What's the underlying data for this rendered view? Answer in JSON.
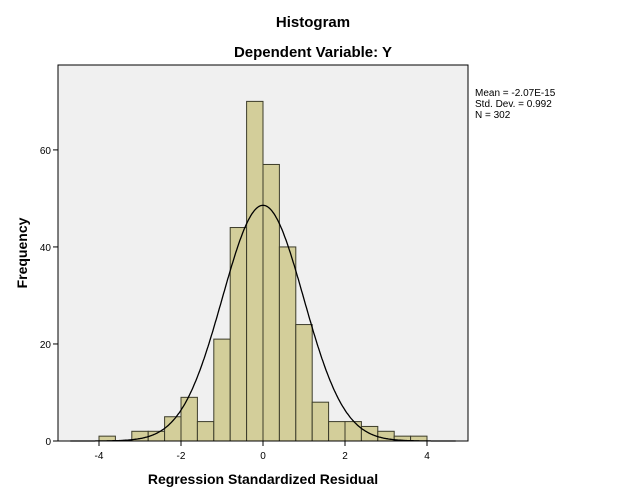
{
  "chart_data": {
    "type": "bar",
    "title": "Histogram",
    "subtitle": "Dependent Variable: Y",
    "xlabel": "Regression Standardized Residual",
    "ylabel": "Frequency",
    "xlim": [
      -5,
      5
    ],
    "ylim": [
      0,
      77.5
    ],
    "xticks": [
      -4,
      -2,
      0,
      2,
      4
    ],
    "yticks": [
      0,
      20,
      40,
      60
    ],
    "bin_width": 0.4,
    "bin_starts": [
      -4.0,
      -3.6,
      -3.2,
      -2.8,
      -2.4,
      -2.0,
      -1.6,
      -1.2,
      -0.8,
      -0.4,
      0.0,
      0.4,
      0.8,
      1.2,
      1.6,
      2.0,
      2.4,
      2.8,
      3.2,
      3.6
    ],
    "values": [
      1,
      0,
      2,
      2,
      5,
      9,
      4,
      21,
      44,
      70,
      57,
      40,
      24,
      8,
      4,
      4,
      3,
      2,
      1,
      1
    ],
    "normal_curve": {
      "mean": 0,
      "sd": 0.992,
      "n": 302
    },
    "stats": [
      "Mean = -2.07E-15",
      "Std. Dev. = 0.992",
      "N = 302"
    ],
    "grid": false,
    "legend": "right",
    "colors": {
      "bar_fill": "#d3ce9a",
      "bar_stroke": "#3c3c2a",
      "plot_bg": "#f0f0f0",
      "curve": "#000000"
    }
  }
}
